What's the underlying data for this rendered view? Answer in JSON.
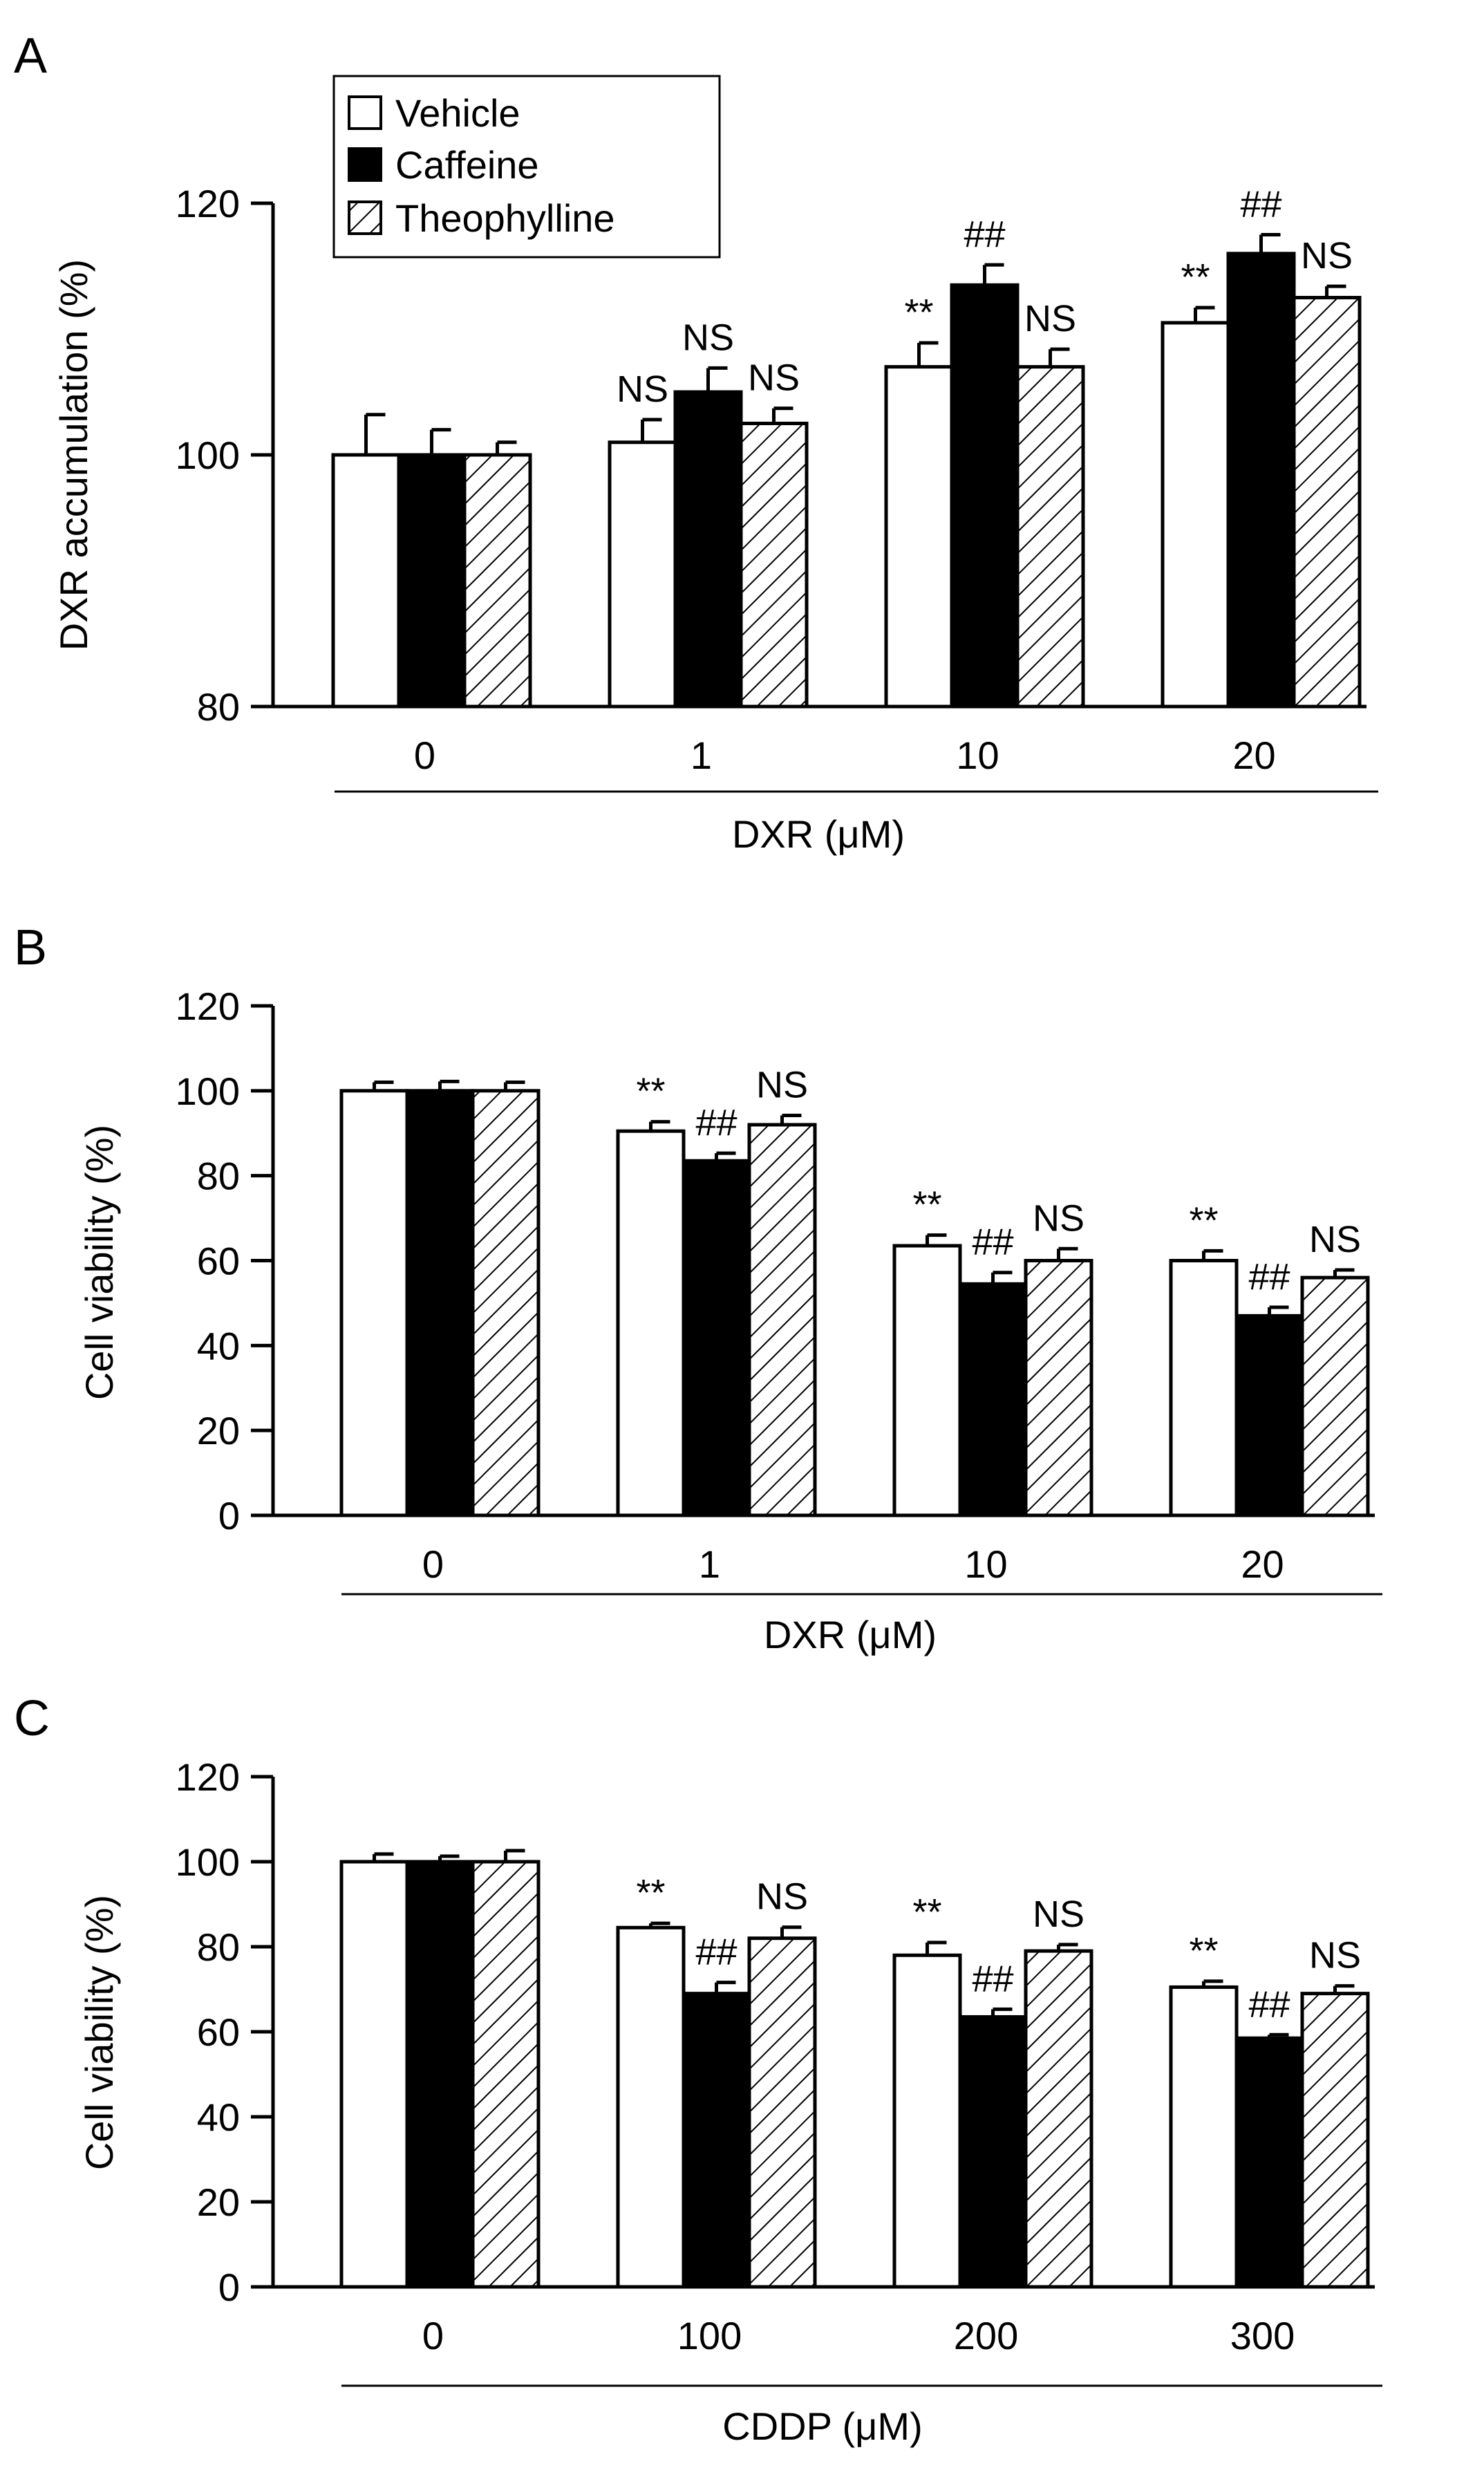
{
  "figure": {
    "legend": [
      "Vehicle",
      "Caffeine",
      "Theophylline"
    ],
    "series_colors": {
      "Vehicle": "#ffffff",
      "Caffeine": "#000000",
      "Theophylline": "hatched"
    }
  },
  "chart_data": [
    {
      "panel": "A",
      "type": "bar",
      "categories": [
        "0",
        "1",
        "10",
        "20"
      ],
      "xlabel": "DXR (μM)",
      "ylabel": "DXR accumulation  (%)",
      "ylim": [
        80,
        120
      ],
      "yticks": [
        80,
        100,
        120
      ],
      "legend_placement": "top-left",
      "series": [
        {
          "name": "Vehicle",
          "values": [
            100,
            101,
            107,
            110.5
          ],
          "errors": [
            3.2,
            1.8,
            1.9,
            1.2
          ]
        },
        {
          "name": "Caffeine",
          "values": [
            100,
            105,
            113.5,
            116
          ],
          "errors": [
            2.0,
            1.9,
            1.6,
            1.5
          ]
        },
        {
          "name": "Theophylline",
          "values": [
            100,
            102.5,
            107,
            112.5
          ],
          "errors": [
            1.0,
            1.2,
            1.4,
            0.9
          ]
        }
      ],
      "annotations": [
        [
          "",
          "",
          ""
        ],
        [
          "NS",
          "NS",
          "NS"
        ],
        [
          "**",
          "##",
          "NS"
        ],
        [
          "**",
          "##",
          "NS"
        ]
      ]
    },
    {
      "panel": "B",
      "type": "bar",
      "categories": [
        "0",
        "1",
        "10",
        "20"
      ],
      "xlabel": "DXR (μM)",
      "ylabel": "Cell viability  (%)",
      "ylim": [
        0,
        120
      ],
      "yticks": [
        0,
        20,
        40,
        60,
        80,
        100,
        120
      ],
      "series": [
        {
          "name": "Vehicle",
          "values": [
            100,
            90.5,
            63.5,
            60
          ],
          "errors": [
            2.0,
            2.2,
            2.5,
            2.3
          ]
        },
        {
          "name": "Caffeine",
          "values": [
            100,
            83.5,
            54.5,
            47
          ],
          "errors": [
            2.2,
            1.8,
            2.7,
            2.0
          ]
        },
        {
          "name": "Theophylline",
          "values": [
            100,
            92,
            60,
            56
          ],
          "errors": [
            2.0,
            2.2,
            2.8,
            1.8
          ]
        }
      ],
      "annotations": [
        [
          "",
          "",
          ""
        ],
        [
          "**",
          "##",
          "NS"
        ],
        [
          "**",
          "##",
          "NS"
        ],
        [
          "**",
          "##",
          "NS"
        ]
      ]
    },
    {
      "panel": "C",
      "type": "bar",
      "categories": [
        "0",
        "100",
        "200",
        "300"
      ],
      "xlabel": "CDDP (μM)",
      "ylabel": "Cell viability  (%)",
      "ylim": [
        0,
        120
      ],
      "yticks": [
        0,
        20,
        40,
        60,
        80,
        100,
        120
      ],
      "series": [
        {
          "name": "Vehicle",
          "values": [
            100,
            84.5,
            78,
            70.5
          ],
          "errors": [
            1.8,
            1.0,
            3.0,
            1.4
          ]
        },
        {
          "name": "Caffeine",
          "values": [
            100,
            69,
            63.5,
            58.5
          ],
          "errors": [
            1.3,
            2.6,
            1.8,
            0.8
          ]
        },
        {
          "name": "Theophylline",
          "values": [
            100,
            82,
            79,
            69
          ],
          "errors": [
            2.6,
            2.6,
            1.5,
            1.8
          ]
        }
      ],
      "annotations": [
        [
          "",
          "",
          ""
        ],
        [
          "**",
          "##",
          "NS"
        ],
        [
          "**",
          "##",
          "NS"
        ],
        [
          "**",
          "##",
          "NS"
        ]
      ]
    }
  ]
}
